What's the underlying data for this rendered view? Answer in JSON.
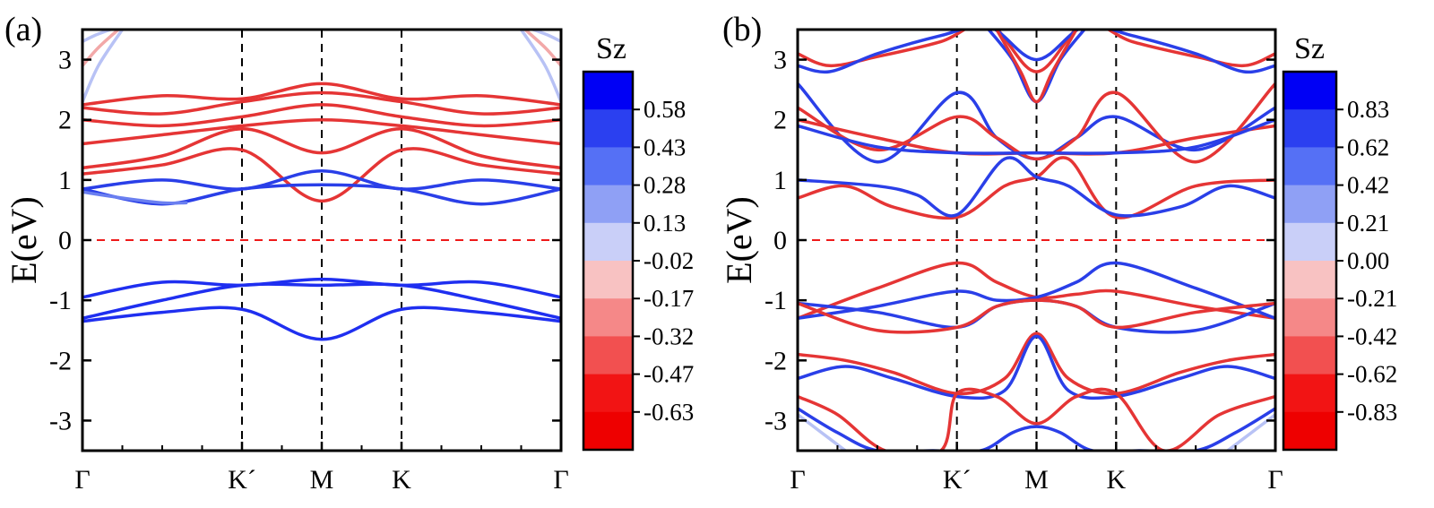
{
  "chart_data": [
    {
      "type": "line",
      "panel_label": "(a)",
      "ylabel": "E(eV)",
      "ylim": [
        -3.5,
        3.5
      ],
      "yticks": [
        -3,
        -2,
        -1,
        0,
        1,
        2,
        3
      ],
      "x_ticks": [
        "Γ",
        "K´",
        "M",
        "K",
        "Γ"
      ],
      "kpath": [
        0,
        2,
        3,
        4,
        6
      ],
      "fermi_level": 0,
      "colorbar": {
        "title": "Sz",
        "levels": [
          "0.58",
          "0.43",
          "0.28",
          "0.13",
          "-0.02",
          "-0.17",
          "-0.32",
          "-0.47",
          "-0.63"
        ],
        "colors": [
          "#0000f5",
          "#2b40f0",
          "#5570f5",
          "#8fa0f5",
          "#c9cff8",
          "#f8c2c2",
          "#f58888",
          "#f25050",
          "#f21414",
          "#ee0000"
        ]
      },
      "series": [
        {
          "color": "#e53535",
          "x": [
            0,
            1,
            2,
            3,
            4,
            5,
            6
          ],
          "y": [
            2.25,
            2.4,
            2.35,
            2.6,
            2.35,
            2.4,
            2.25
          ]
        },
        {
          "color": "#e53535",
          "x": [
            0,
            1,
            2,
            3,
            4,
            5,
            6
          ],
          "y": [
            2.2,
            2.1,
            2.3,
            2.45,
            2.3,
            2.1,
            2.2
          ]
        },
        {
          "color": "#e53535",
          "x": [
            0,
            1,
            2,
            3,
            4,
            5,
            6
          ],
          "y": [
            2.0,
            1.9,
            2.05,
            2.25,
            2.05,
            1.9,
            2.0
          ]
        },
        {
          "color": "#e53535",
          "x": [
            0,
            1,
            2,
            3,
            4,
            5,
            6
          ],
          "y": [
            1.6,
            1.75,
            1.9,
            2.0,
            1.9,
            1.75,
            1.6
          ]
        },
        {
          "color": "#e53535",
          "x": [
            0,
            1,
            2,
            3,
            4,
            5,
            6
          ],
          "y": [
            1.2,
            1.4,
            1.85,
            1.45,
            1.85,
            1.4,
            1.2
          ]
        },
        {
          "color": "#e53535",
          "x": [
            0,
            1,
            2,
            3,
            4,
            5,
            6
          ],
          "y": [
            1.1,
            1.25,
            1.5,
            0.65,
            1.5,
            1.25,
            1.1
          ]
        },
        {
          "color": "#2a3fe8",
          "x": [
            0,
            1,
            2,
            3,
            4,
            5,
            6
          ],
          "y": [
            0.85,
            1.0,
            0.85,
            1.15,
            0.85,
            1.0,
            0.85
          ]
        },
        {
          "color": "#2a3fe8",
          "x": [
            0,
            1,
            2,
            3,
            4,
            5,
            6
          ],
          "y": [
            0.85,
            0.6,
            0.85,
            0.92,
            0.85,
            0.6,
            0.85
          ]
        },
        {
          "color": "#6a7ff0",
          "x": [
            0,
            0.5,
            1,
            1.3
          ],
          "y": [
            0.8,
            0.7,
            0.62,
            0.62
          ]
        },
        {
          "color": "#1f2ff0",
          "x": [
            0,
            1,
            2,
            3,
            4,
            5,
            6
          ],
          "y": [
            -0.95,
            -0.7,
            -0.75,
            -0.65,
            -0.75,
            -0.7,
            -0.95
          ]
        },
        {
          "color": "#1f2ff0",
          "x": [
            0,
            1,
            2,
            3,
            4,
            5,
            6
          ],
          "y": [
            -1.3,
            -1.0,
            -0.75,
            -0.75,
            -0.75,
            -1.0,
            -1.3
          ]
        },
        {
          "color": "#1f2ff0",
          "x": [
            0,
            1,
            2,
            3,
            4,
            5,
            6
          ],
          "y": [
            -1.35,
            -1.2,
            -1.15,
            -1.65,
            -1.15,
            -1.2,
            -1.35
          ]
        },
        {
          "color": "#b8c2f5",
          "x": [
            0,
            0.2,
            0.5
          ],
          "y": [
            2.3,
            2.9,
            3.5
          ]
        },
        {
          "color": "#f2a8a8",
          "x": [
            0,
            0.2,
            0.45
          ],
          "y": [
            2.9,
            3.2,
            3.5
          ]
        },
        {
          "color": "#b8c2f5",
          "x": [
            0,
            0.15,
            0.35
          ],
          "y": [
            3.3,
            3.4,
            3.5
          ]
        },
        {
          "color": "#b8c2f5",
          "x": [
            5.5,
            5.8,
            6
          ],
          "y": [
            3.5,
            2.9,
            2.3
          ]
        },
        {
          "color": "#f2a8a8",
          "x": [
            5.55,
            5.8,
            6
          ],
          "y": [
            3.5,
            3.2,
            2.9
          ]
        },
        {
          "color": "#b8c2f5",
          "x": [
            5.65,
            5.85,
            6
          ],
          "y": [
            3.5,
            3.4,
            3.3
          ]
        }
      ]
    },
    {
      "type": "line",
      "panel_label": "(b)",
      "ylabel": "E(eV)",
      "ylim": [
        -3.5,
        3.5
      ],
      "yticks": [
        -3,
        -2,
        -1,
        0,
        1,
        2,
        3
      ],
      "x_ticks": [
        "Γ",
        "K´",
        "M",
        "K",
        "Γ"
      ],
      "kpath": [
        0,
        2,
        3,
        4,
        6
      ],
      "fermi_level": 0,
      "colorbar": {
        "title": "Sz",
        "levels": [
          "0.83",
          "0.62",
          "0.42",
          "0.21",
          "0.00",
          "-0.21",
          "-0.42",
          "-0.62",
          "-0.83"
        ],
        "colors": [
          "#0000f5",
          "#2b40f0",
          "#5570f5",
          "#8fa0f5",
          "#c9cff8",
          "#f8c2c2",
          "#f58888",
          "#f25050",
          "#f21414",
          "#ee0000"
        ]
      },
      "series": [
        {
          "color": "#e53535",
          "x": [
            0,
            1,
            2,
            2.5,
            3,
            3.5,
            4,
            5,
            6
          ],
          "y": [
            -1.3,
            -0.8,
            -0.38,
            -0.7,
            -0.95,
            -0.9,
            -0.85,
            -1.1,
            -1.3
          ]
        },
        {
          "color": "#2a3fe8",
          "x": [
            0,
            1,
            2,
            2.5,
            3,
            3.5,
            4,
            5,
            6
          ],
          "y": [
            -1.3,
            -1.1,
            -0.85,
            -1.0,
            -0.95,
            -0.7,
            -0.38,
            -0.8,
            -1.3
          ]
        },
        {
          "color": "#2a3fe8",
          "x": [
            0,
            1,
            2,
            2.5,
            3,
            3.5,
            4,
            5,
            6
          ],
          "y": [
            -1.05,
            -1.2,
            -1.45,
            -1.1,
            -1.0,
            -1.1,
            -1.45,
            -1.5,
            -1.05
          ]
        },
        {
          "color": "#e53535",
          "x": [
            0,
            1,
            2,
            2.5,
            3,
            3.5,
            4,
            5,
            6
          ],
          "y": [
            -1.05,
            -1.5,
            -1.45,
            -1.1,
            -1.0,
            -1.1,
            -1.45,
            -1.2,
            -1.05
          ]
        },
        {
          "color": "#e53535",
          "x": [
            0,
            0.6,
            1.2,
            2,
            2.6,
            3,
            3.4,
            4,
            5,
            6
          ],
          "y": [
            0.7,
            0.9,
            0.55,
            0.38,
            0.9,
            1.05,
            1.35,
            0.38,
            0.9,
            1.0
          ]
        },
        {
          "color": "#2a3fe8",
          "x": [
            0,
            1,
            1.5,
            2,
            2.6,
            3,
            3.4,
            4,
            4.8,
            5.4,
            6
          ],
          "y": [
            1.0,
            0.9,
            0.75,
            0.42,
            1.35,
            1.05,
            0.9,
            0.42,
            0.55,
            0.9,
            0.7
          ]
        },
        {
          "color": "#2a3fe8",
          "x": [
            0,
            1,
            2,
            2.5,
            3,
            3.5,
            4,
            5,
            6
          ],
          "y": [
            2.6,
            1.3,
            2.45,
            1.7,
            1.35,
            1.7,
            2.05,
            1.5,
            2.2
          ]
        },
        {
          "color": "#e53535",
          "x": [
            0,
            1,
            2,
            2.5,
            3,
            3.5,
            4,
            5,
            6
          ],
          "y": [
            2.2,
            1.5,
            2.05,
            1.7,
            1.35,
            1.7,
            2.45,
            1.3,
            2.6
          ]
        },
        {
          "color": "#e53535",
          "x": [
            0,
            1,
            2,
            3,
            4,
            5,
            6
          ],
          "y": [
            2.0,
            1.7,
            1.45,
            1.45,
            1.45,
            1.7,
            1.9
          ]
        },
        {
          "color": "#2a3fe8",
          "x": [
            0,
            1,
            2,
            3,
            4,
            5,
            6
          ],
          "y": [
            1.9,
            1.55,
            1.45,
            1.45,
            1.45,
            1.55,
            2.0
          ]
        },
        {
          "color": "#e53535",
          "x": [
            0,
            0.4,
            1,
            1.8,
            2.4,
            3,
            3.6,
            4.2,
            5,
            5.6,
            6
          ],
          "y": [
            3.1,
            2.9,
            3.05,
            3.3,
            3.6,
            2.8,
            3.6,
            3.3,
            3.05,
            2.9,
            3.1
          ]
        },
        {
          "color": "#2a3fe8",
          "x": [
            0,
            0.4,
            1,
            1.8,
            2.4,
            3,
            3.6,
            4.2,
            5,
            5.6,
            6
          ],
          "y": [
            2.9,
            2.8,
            3.1,
            3.4,
            3.55,
            3.0,
            3.55,
            3.4,
            3.1,
            2.8,
            2.9
          ]
        },
        {
          "color": "#2a3fe8",
          "x": [
            2.4,
            2.7,
            3,
            3.3,
            3.6
          ],
          "y": [
            3.5,
            3.0,
            2.3,
            3.0,
            3.5
          ]
        },
        {
          "color": "#e53535",
          "x": [
            2.5,
            2.8,
            3,
            3.2,
            3.5
          ],
          "y": [
            3.5,
            2.8,
            2.3,
            2.8,
            3.5
          ]
        },
        {
          "color": "#e53535",
          "x": [
            0,
            0.6,
            1.2,
            2,
            2.6,
            3,
            3.4,
            4,
            4.8,
            5.4,
            6
          ],
          "y": [
            -1.9,
            -2.0,
            -2.2,
            -2.55,
            -2.3,
            -1.55,
            -2.3,
            -2.55,
            -2.2,
            -2.0,
            -1.9
          ]
        },
        {
          "color": "#2a3fe8",
          "x": [
            0,
            0.6,
            1.2,
            2,
            2.6,
            3,
            3.4,
            4,
            4.8,
            5.4,
            6
          ],
          "y": [
            -2.3,
            -2.1,
            -2.3,
            -2.6,
            -2.5,
            -1.6,
            -2.5,
            -2.6,
            -2.3,
            -2.1,
            -2.3
          ]
        },
        {
          "color": "#e53535",
          "x": [
            0,
            0.5,
            1.1,
            1.8,
            2,
            2.5,
            3,
            3.5,
            4,
            4.6,
            5.3,
            6
          ],
          "y": [
            -2.6,
            -2.9,
            -3.5,
            -3.5,
            -2.55,
            -2.6,
            -3.05,
            -2.6,
            -2.55,
            -3.5,
            -2.9,
            -2.6
          ]
        },
        {
          "color": "#2a3fe8",
          "x": [
            0,
            0.5,
            1.0,
            1.7,
            2.3,
            2.7,
            3,
            3.3,
            3.7,
            4.3,
            5.0,
            5.5,
            6
          ],
          "y": [
            -2.8,
            -3.2,
            -3.5,
            -3.5,
            -3.5,
            -3.2,
            -3.1,
            -3.2,
            -3.5,
            -3.5,
            -3.5,
            -3.2,
            -2.8
          ]
        },
        {
          "color": "#b8c2f5",
          "x": [
            0,
            0.3,
            0.6
          ],
          "y": [
            -2.9,
            -3.2,
            -3.5
          ]
        },
        {
          "color": "#b8c2f5",
          "x": [
            5.4,
            5.7,
            6
          ],
          "y": [
            -3.5,
            -3.2,
            -2.9
          ]
        }
      ]
    }
  ]
}
